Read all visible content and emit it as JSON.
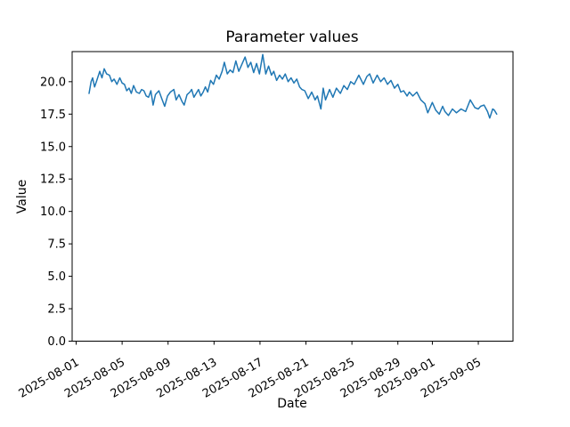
{
  "chart_data": {
    "type": "line",
    "title": "Parameter values",
    "xlabel": "Date",
    "ylabel": "Value",
    "legend": null,
    "grid": false,
    "background_color": "#ffffff",
    "spine_color": "#000000",
    "epoch_date": "2025-08-01",
    "xlim_day_offsets": [
      -0.35,
      38.02
    ],
    "ylim": [
      0,
      22.32
    ],
    "x_ticks": [
      {
        "label": "2025-08-01",
        "day": 0
      },
      {
        "label": "2025-08-05",
        "day": 4
      },
      {
        "label": "2025-08-09",
        "day": 8
      },
      {
        "label": "2025-08-13",
        "day": 12
      },
      {
        "label": "2025-08-17",
        "day": 16
      },
      {
        "label": "2025-08-21",
        "day": 20
      },
      {
        "label": "2025-08-25",
        "day": 24
      },
      {
        "label": "2025-08-29",
        "day": 28
      },
      {
        "label": "2025-09-01",
        "day": 31
      },
      {
        "label": "2025-09-05",
        "day": 35
      }
    ],
    "y_ticks": [
      {
        "label": "0.0",
        "value": 0
      },
      {
        "label": "2.5",
        "value": 2.5
      },
      {
        "label": "5.0",
        "value": 5
      },
      {
        "label": "7.5",
        "value": 7.5
      },
      {
        "label": "10.0",
        "value": 10
      },
      {
        "label": "12.5",
        "value": 12.5
      },
      {
        "label": "15.0",
        "value": 15
      },
      {
        "label": "17.5",
        "value": 17.5
      },
      {
        "label": "20.0",
        "value": 20
      }
    ],
    "series": [
      {
        "name": "parameter-values",
        "color": "#1f77b4",
        "line_width": 1.5,
        "points_format": "[day_offset_from_epoch, value]",
        "points": [
          [
            1.12,
            19.1
          ],
          [
            1.3,
            20.0
          ],
          [
            1.43,
            20.3
          ],
          [
            1.6,
            19.6
          ],
          [
            1.8,
            20.1
          ],
          [
            2.05,
            20.8
          ],
          [
            2.25,
            20.3
          ],
          [
            2.44,
            21.0
          ],
          [
            2.65,
            20.6
          ],
          [
            2.9,
            20.5
          ],
          [
            3.1,
            20.0
          ],
          [
            3.3,
            20.2
          ],
          [
            3.55,
            19.8
          ],
          [
            3.8,
            20.3
          ],
          [
            4.0,
            19.9
          ],
          [
            4.2,
            19.8
          ],
          [
            4.4,
            19.3
          ],
          [
            4.6,
            19.5
          ],
          [
            4.8,
            19.1
          ],
          [
            5.0,
            19.7
          ],
          [
            5.25,
            19.2
          ],
          [
            5.5,
            19.1
          ],
          [
            5.7,
            19.4
          ],
          [
            5.9,
            19.3
          ],
          [
            6.1,
            18.9
          ],
          [
            6.3,
            18.8
          ],
          [
            6.5,
            19.3
          ],
          [
            6.7,
            18.2
          ],
          [
            6.9,
            19.0
          ],
          [
            7.2,
            19.3
          ],
          [
            7.45,
            18.7
          ],
          [
            7.7,
            18.1
          ],
          [
            7.95,
            18.9
          ],
          [
            8.2,
            19.2
          ],
          [
            8.5,
            19.4
          ],
          [
            8.7,
            18.6
          ],
          [
            8.95,
            19.0
          ],
          [
            9.2,
            18.5
          ],
          [
            9.4,
            18.2
          ],
          [
            9.65,
            19.0
          ],
          [
            9.9,
            19.2
          ],
          [
            10.05,
            19.4
          ],
          [
            10.25,
            18.8
          ],
          [
            10.45,
            19.1
          ],
          [
            10.65,
            19.4
          ],
          [
            10.85,
            18.9
          ],
          [
            11.05,
            19.2
          ],
          [
            11.25,
            19.6
          ],
          [
            11.45,
            19.2
          ],
          [
            11.7,
            20.1
          ],
          [
            11.95,
            19.8
          ],
          [
            12.2,
            20.5
          ],
          [
            12.45,
            20.2
          ],
          [
            12.7,
            20.8
          ],
          [
            12.9,
            21.5
          ],
          [
            13.15,
            20.6
          ],
          [
            13.4,
            20.9
          ],
          [
            13.65,
            20.7
          ],
          [
            13.9,
            21.6
          ],
          [
            14.15,
            20.8
          ],
          [
            14.4,
            21.3
          ],
          [
            14.7,
            21.9
          ],
          [
            14.95,
            21.1
          ],
          [
            15.2,
            21.5
          ],
          [
            15.45,
            20.7
          ],
          [
            15.7,
            21.4
          ],
          [
            15.95,
            20.6
          ],
          [
            16.24,
            22.1
          ],
          [
            16.5,
            20.6
          ],
          [
            16.75,
            21.2
          ],
          [
            17.0,
            20.5
          ],
          [
            17.2,
            20.8
          ],
          [
            17.45,
            20.1
          ],
          [
            17.7,
            20.5
          ],
          [
            17.95,
            20.2
          ],
          [
            18.2,
            20.6
          ],
          [
            18.45,
            20.0
          ],
          [
            18.7,
            20.3
          ],
          [
            18.95,
            19.9
          ],
          [
            19.2,
            20.2
          ],
          [
            19.45,
            19.6
          ],
          [
            19.65,
            19.4
          ],
          [
            19.9,
            19.3
          ],
          [
            20.2,
            18.7
          ],
          [
            20.5,
            19.2
          ],
          [
            20.8,
            18.6
          ],
          [
            21.0,
            18.9
          ],
          [
            21.3,
            17.9
          ],
          [
            21.5,
            19.5
          ],
          [
            21.7,
            18.6
          ],
          [
            22.05,
            19.4
          ],
          [
            22.35,
            18.8
          ],
          [
            22.65,
            19.5
          ],
          [
            23.0,
            19.1
          ],
          [
            23.3,
            19.7
          ],
          [
            23.6,
            19.4
          ],
          [
            23.9,
            20.0
          ],
          [
            24.2,
            19.8
          ],
          [
            24.6,
            20.5
          ],
          [
            25.0,
            19.8
          ],
          [
            25.3,
            20.4
          ],
          [
            25.55,
            20.6
          ],
          [
            25.85,
            19.9
          ],
          [
            26.2,
            20.5
          ],
          [
            26.5,
            20.0
          ],
          [
            26.8,
            20.3
          ],
          [
            27.1,
            19.8
          ],
          [
            27.4,
            20.1
          ],
          [
            27.7,
            19.5
          ],
          [
            28.0,
            19.8
          ],
          [
            28.25,
            19.2
          ],
          [
            28.5,
            19.3
          ],
          [
            28.8,
            18.9
          ],
          [
            29.0,
            19.2
          ],
          [
            29.3,
            18.9
          ],
          [
            29.65,
            19.2
          ],
          [
            30.0,
            18.6
          ],
          [
            30.35,
            18.3
          ],
          [
            30.6,
            17.6
          ],
          [
            31.0,
            18.4
          ],
          [
            31.3,
            17.8
          ],
          [
            31.6,
            17.5
          ],
          [
            31.9,
            18.1
          ],
          [
            32.1,
            17.7
          ],
          [
            32.4,
            17.4
          ],
          [
            32.75,
            17.9
          ],
          [
            33.1,
            17.6
          ],
          [
            33.5,
            17.9
          ],
          [
            33.9,
            17.7
          ],
          [
            34.3,
            18.6
          ],
          [
            34.7,
            18.0
          ],
          [
            35.0,
            17.9
          ],
          [
            35.2,
            18.1
          ],
          [
            35.5,
            18.2
          ],
          [
            35.8,
            17.7
          ],
          [
            36.0,
            17.2
          ],
          [
            36.25,
            17.9
          ],
          [
            36.4,
            17.8
          ],
          [
            36.6,
            17.5
          ]
        ]
      }
    ]
  }
}
